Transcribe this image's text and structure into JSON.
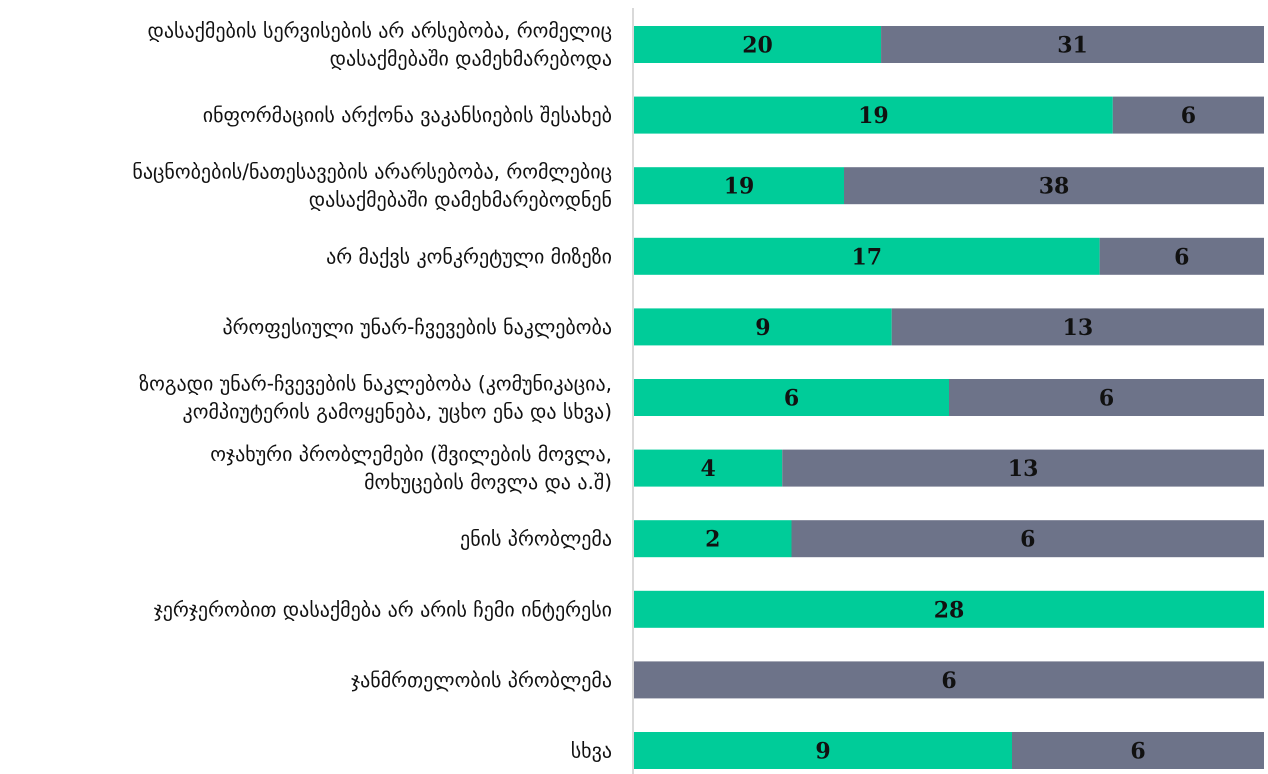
{
  "colors": {
    "series1": "#00cc99",
    "series2": "#6d7389",
    "axis": "#d9d9d9",
    "text": "#111111"
  },
  "chart_data": {
    "type": "bar",
    "orientation": "horizontal",
    "stacked": "100%",
    "title": "",
    "xlabel": "",
    "ylabel": "",
    "grid": false,
    "legend": "none",
    "categories": [
      [
        "დასაქმების სერვისების არ არსებობა, რომელიც",
        "დასაქმებაში დამეხმარებოდა"
      ],
      [
        "ინფორმაციის არქონა ვაკანსიების შესახებ"
      ],
      [
        "ნაცნობების/ნათესავების არარსებობა, რომლებიც",
        "დასაქმებაში დამეხმარებოდნენ"
      ],
      [
        "არ მაქვს კონკრეტული მიზეზი"
      ],
      [
        "პროფესიული უნარ-ჩვევების ნაკლებობა"
      ],
      [
        "ზოგადი უნარ-ჩვევების ნაკლებობა (კომუნიკაცია,",
        "კომპიუტერის გამოყენება, უცხო ენა და სხვა)"
      ],
      [
        "ოჯახური პრობლემები (შვილების მოვლა,",
        "მოხუცების მოვლა და ა.შ)"
      ],
      [
        "ენის პრობლემა"
      ],
      [
        "ჯერჯერობით დასაქმება არ არის ჩემი ინტერესი"
      ],
      [
        "ჯანმრთელობის პრობლემა"
      ],
      [
        "სხვა"
      ]
    ],
    "series": [
      {
        "values": [
          20,
          19,
          19,
          17,
          9,
          6,
          4,
          2,
          28,
          0,
          9
        ]
      },
      {
        "values": [
          31,
          6,
          38,
          6,
          13,
          6,
          13,
          6,
          0,
          6,
          6
        ]
      }
    ]
  }
}
